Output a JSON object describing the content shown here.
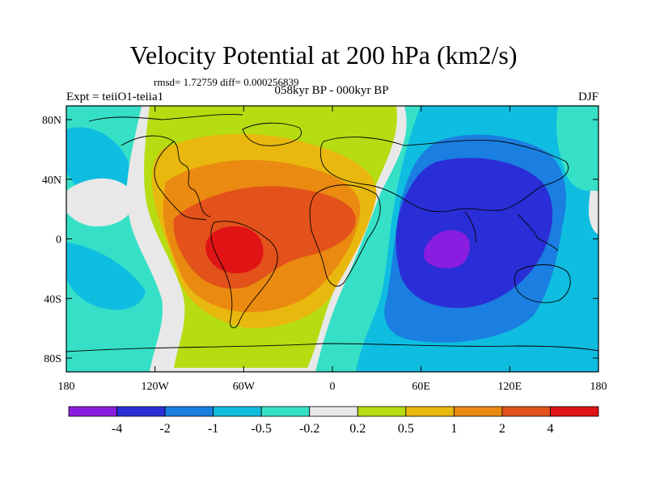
{
  "title": "Velocity Potential at 200 hPa (km2/s)",
  "stats_line": "rmsd= 1.72759 diff= 0.000256839",
  "left_subtitle": "Expt = teiiO1-teiia1",
  "center_subtitle": "058kyr BP - 000kyr BP",
  "right_subtitle": "DJF",
  "x_ticks": [
    "180",
    "120W",
    "60W",
    "0",
    "60E",
    "120E",
    "180"
  ],
  "y_ticks": [
    "80N",
    "40N",
    "0",
    "40S",
    "80S"
  ],
  "colorbar": {
    "colors": [
      "#8a1ee0",
      "#2a2ed6",
      "#1a7fe0",
      "#0fbde0",
      "#36e0c6",
      "#e8e8e8",
      "#b6dc12",
      "#e8b80e",
      "#ea8a10",
      "#e2521a",
      "#e01414"
    ],
    "labels": [
      "-4",
      "-2",
      "-1",
      "-0.5",
      "-0.2",
      "0.2",
      "0.5",
      "1",
      "2",
      "4"
    ]
  },
  "map_data": {
    "type": "filled-contour",
    "field": "velocity potential difference",
    "lon_range": [
      -180,
      180
    ],
    "lat_range": [
      -90,
      90
    ],
    "features": [
      {
        "name": "positive center over South America / tropical Atlantic",
        "lon": -65,
        "lat": -5,
        "max_level": "4"
      },
      {
        "name": "negative center over Indian Ocean / Maritime Continent",
        "lon": 80,
        "lat": -5,
        "min_level": "-4"
      }
    ]
  }
}
